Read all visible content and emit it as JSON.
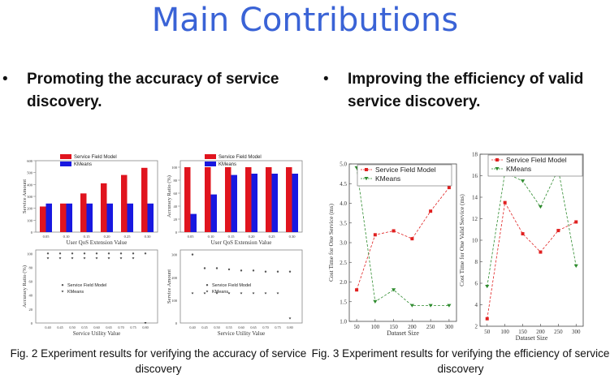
{
  "slide": {
    "title": "Main Contributions"
  },
  "bullets": [
    {
      "symbol": "•",
      "text": "Promoting the accuracy of service discovery."
    },
    {
      "symbol": "•",
      "text": "Improving the efficiency of valid service discovery."
    }
  ],
  "captions": {
    "left": "Fig. 2 Experiment results for verifying the accuracy of service discovery",
    "right": "Fig. 3 Experiment results for verifying the efficiency of service discovery"
  },
  "colors": {
    "series_a": "#e0141e",
    "series_b": "#1818e0",
    "green": "#2e8b2e",
    "red": "#e02020"
  },
  "chart_data": [
    {
      "type": "bar",
      "categories": [
        "0.05",
        "0.10",
        "0.15",
        "0.20",
        "0.25",
        "0.30"
      ],
      "series": [
        {
          "name": "Service Field Model",
          "values": [
            215,
            240,
            325,
            410,
            480,
            540
          ]
        },
        {
          "name": "KMeans",
          "values": [
            240,
            240,
            240,
            240,
            240,
            240
          ]
        }
      ],
      "xlabel": "User QoS Extension Value",
      "ylabel": "Service Amount",
      "ylim": [
        0,
        600
      ]
    },
    {
      "type": "bar",
      "categories": [
        "0.05",
        "0.10",
        "0.15",
        "0.20",
        "0.25",
        "0.30"
      ],
      "series": [
        {
          "name": "Service Field Model",
          "values": [
            100,
            100,
            100,
            100,
            100,
            100
          ]
        },
        {
          "name": "KMeans",
          "values": [
            28,
            58,
            88,
            90,
            90,
            90
          ]
        }
      ],
      "xlabel": "User QoS Extension Value",
      "ylabel": "Accuracy Ratio (%)",
      "ylim": [
        0,
        110
      ]
    },
    {
      "type": "scatter",
      "x": [
        0.4,
        0.45,
        0.5,
        0.55,
        0.6,
        0.65,
        0.7,
        0.75,
        0.8
      ],
      "series": [
        {
          "name": "Service Field Model",
          "values": [
            100,
            100,
            100,
            100,
            100,
            100,
            100,
            100,
            100
          ]
        },
        {
          "name": "KMeans",
          "values": [
            93,
            93,
            93,
            93,
            93,
            93,
            93,
            93,
            0
          ]
        }
      ],
      "xlabel": "Service Utility Value",
      "ylabel": "Accuracy Ratio (%)",
      "ylim": [
        0,
        105
      ]
    },
    {
      "type": "scatter",
      "x": [
        0.4,
        0.45,
        0.5,
        0.55,
        0.6,
        0.65,
        0.7,
        0.75,
        0.8
      ],
      "series": [
        {
          "name": "Service Field Model",
          "values": [
            300,
            240,
            240,
            235,
            230,
            230,
            225,
            225,
            225
          ]
        },
        {
          "name": "KMeans",
          "values": [
            130,
            130,
            130,
            130,
            130,
            130,
            130,
            130,
            20
          ]
        }
      ],
      "xlabel": "Service Utility Value",
      "ylabel": "Service Amount",
      "ylim": [
        0,
        320
      ]
    },
    {
      "type": "line",
      "x": [
        50,
        100,
        150,
        200,
        250,
        300
      ],
      "series": [
        {
          "name": "Service Field Model",
          "values": [
            1.8,
            3.2,
            3.3,
            3.1,
            3.8,
            4.4
          ]
        },
        {
          "name": "KMeans",
          "values": [
            4.9,
            1.5,
            1.8,
            1.4,
            1.4,
            1.4
          ]
        }
      ],
      "xlabel": "Dataset Size",
      "ylabel": "Cost Time for One Service (ms)",
      "xticks": [
        "50",
        "100",
        "150",
        "200",
        "250",
        "300"
      ],
      "yticks": [
        "1.0",
        "1.5",
        "2.0",
        "2.5",
        "3.0",
        "3.5",
        "4.0",
        "4.5",
        "5.0"
      ],
      "ylim": [
        1.0,
        5.0
      ]
    },
    {
      "type": "line",
      "x": [
        50,
        100,
        150,
        200,
        250,
        300
      ],
      "series": [
        {
          "name": "Service Field Model",
          "values": [
            2.7,
            13.5,
            10.6,
            8.9,
            10.9,
            11.7
          ]
        },
        {
          "name": "KMeans",
          "values": [
            5.7,
            16.3,
            15.5,
            13.1,
            16.6,
            7.6
          ]
        }
      ],
      "xlabel": "Dataset Size",
      "ylabel": "Cost Time for One Valid Service (ms)",
      "xticks": [
        "50",
        "100",
        "150",
        "200",
        "250",
        "300"
      ],
      "yticks": [
        "2",
        "4",
        "6",
        "8",
        "10",
        "12",
        "14",
        "16",
        "18"
      ],
      "ylim": [
        2,
        18
      ]
    }
  ]
}
